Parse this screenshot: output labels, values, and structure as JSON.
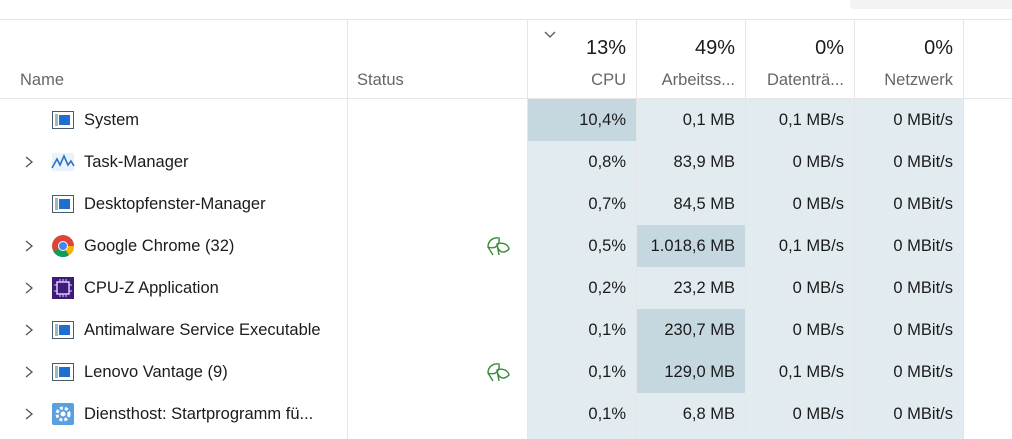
{
  "header": {
    "name": "Name",
    "status": "Status",
    "columns": [
      {
        "percent": "13%",
        "label": "CPU"
      },
      {
        "percent": "49%",
        "label": "Arbeitss..."
      },
      {
        "percent": "0%",
        "label": "Datenträ..."
      },
      {
        "percent": "0%",
        "label": "Netzwerk"
      }
    ]
  },
  "rows": [
    {
      "name": "System",
      "values": [
        "10,4%",
        "0,1 MB",
        "0,1 MB/s",
        "0 MBit/s"
      ]
    },
    {
      "name": "Task-Manager",
      "values": [
        "0,8%",
        "83,9 MB",
        "0 MB/s",
        "0 MBit/s"
      ]
    },
    {
      "name": "Desktopfenster-Manager",
      "values": [
        "0,7%",
        "84,5 MB",
        "0 MB/s",
        "0 MBit/s"
      ]
    },
    {
      "name": "Google Chrome (32)",
      "values": [
        "0,5%",
        "1.018,6 MB",
        "0,1 MB/s",
        "0 MBit/s"
      ]
    },
    {
      "name": "CPU-Z Application",
      "values": [
        "0,2%",
        "23,2 MB",
        "0 MB/s",
        "0 MBit/s"
      ]
    },
    {
      "name": "Antimalware Service Executable",
      "values": [
        "0,1%",
        "230,7 MB",
        "0 MB/s",
        "0 MBit/s"
      ]
    },
    {
      "name": "Lenovo Vantage (9)",
      "values": [
        "0,1%",
        "129,0 MB",
        "0,1 MB/s",
        "0 MBit/s"
      ]
    },
    {
      "name": "Diensthost: Startprogramm fü...",
      "values": [
        "0,1%",
        "6,8 MB",
        "0 MB/s",
        "0 MBit/s"
      ]
    }
  ]
}
